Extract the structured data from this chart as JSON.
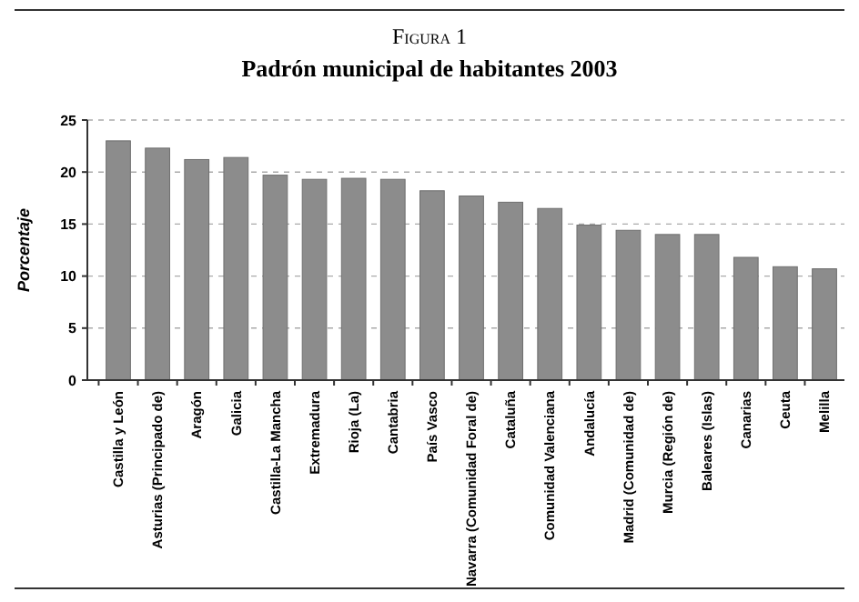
{
  "chart_data": {
    "type": "bar",
    "title": "Figura 1",
    "subtitle": "Padrón municipal de habitantes 2003",
    "ylabel": "Porcentaje",
    "categories": [
      "Castilla y León",
      "Asturias (Principado de)",
      "Aragón",
      "Galicia",
      "Castilla-La Mancha",
      "Extremadura",
      "Rioja (La)",
      "Cantabria",
      "País Vasco",
      "Navarra (Comunidad Foral de)",
      "Cataluña",
      "Comunidad Valenciana",
      "Andalucía",
      "Madrid (Comunidad de)",
      "Murcia (Región de)",
      "Baleares (Islas)",
      "Canarias",
      "Ceuta",
      "Melilla"
    ],
    "values": [
      23.0,
      22.3,
      21.2,
      21.4,
      19.7,
      19.3,
      19.4,
      19.3,
      18.2,
      17.7,
      17.1,
      16.5,
      14.9,
      14.4,
      14.0,
      14.0,
      11.8,
      10.9,
      10.7
    ],
    "color": "#8c8c8c",
    "ylim": [
      0,
      25
    ],
    "yticks": [
      0,
      5,
      10,
      15,
      20,
      25
    ],
    "grid": "y"
  }
}
